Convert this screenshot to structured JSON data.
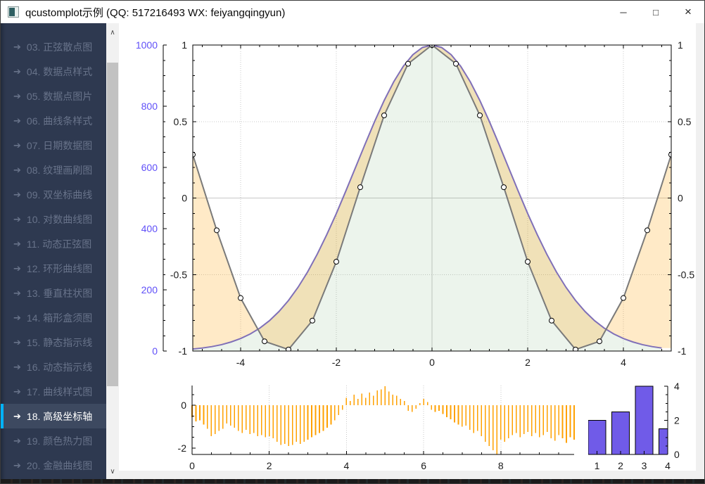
{
  "window": {
    "title": "qcustomplot示例 (QQ: 517216493 WX: feiyangqingyun)",
    "controls": {
      "minimize": "─",
      "maximize": "□",
      "close": "×"
    }
  },
  "sidebar": {
    "arrow_glyph": "➔",
    "items": [
      {
        "label": "03. 正弦散点图",
        "selected": false
      },
      {
        "label": "04. 数据点样式",
        "selected": false
      },
      {
        "label": "05. 数据点图片",
        "selected": false
      },
      {
        "label": "06. 曲线条样式",
        "selected": false
      },
      {
        "label": "07. 日期数据图",
        "selected": false
      },
      {
        "label": "08. 纹理画刷图",
        "selected": false
      },
      {
        "label": "09. 双坐标曲线",
        "selected": false
      },
      {
        "label": "10. 对数曲线图",
        "selected": false
      },
      {
        "label": "11. 动态正弦图",
        "selected": false
      },
      {
        "label": "12. 环形曲线图",
        "selected": false
      },
      {
        "label": "13. 垂直柱状图",
        "selected": false
      },
      {
        "label": "14. 箱形盒须图",
        "selected": false
      },
      {
        "label": "15. 静态指示线",
        "selected": false
      },
      {
        "label": "16. 动态指示线",
        "selected": false
      },
      {
        "label": "17. 曲线样式图",
        "selected": false
      },
      {
        "label": "18. 高级坐标轴",
        "selected": true
      },
      {
        "label": "19. 颜色热力图",
        "selected": false
      },
      {
        "label": "20. 金融曲线图",
        "selected": false
      }
    ]
  },
  "colors": {
    "sidebar_bg": "#2e3950",
    "sidebar_selected_bg": "#3d4960",
    "sidebar_accent": "#00b3ff",
    "blue_axis_labels": "#6050F8",
    "gauss_line": "#8070B8",
    "gauss_fill": "rgba(110,170,110,0.13)",
    "cos_line": "#7a7a7a",
    "channel_fill": "rgba(255,161,0,0.22)",
    "impulse": "#FFA100",
    "bar_fill": "#705BE8",
    "axis": "#000000",
    "grid": "#c8c8c8"
  },
  "chart_data": [
    {
      "type": "line",
      "name": "main-advanced-axes-plot",
      "x_range": [
        -5,
        5
      ],
      "axes": {
        "bottom": {
          "ticks": [
            -4,
            -2,
            0,
            2,
            4
          ],
          "subtick_step": 0.4
        },
        "left_inner": {
          "range": [
            -1,
            1
          ],
          "ticks": [
            -1,
            -0.5,
            0,
            0.5,
            1
          ],
          "subtick_step": 0.1
        },
        "left_outer": {
          "range": [
            0,
            1000
          ],
          "ticks": [
            0,
            200,
            400,
            600,
            800,
            1000
          ],
          "subtick_step": 50,
          "label_color": "#6050F8"
        },
        "right": {
          "range": [
            -1,
            1
          ],
          "ticks": [
            -1,
            -0.5,
            0,
            0.5,
            1
          ],
          "subtick_step": 0.1
        }
      },
      "series": [
        {
          "name": "gauss-curve",
          "axis": "left_outer",
          "line_color": "#8070B8",
          "fill_color": "rgba(110,170,110,0.13)",
          "x_start": -5,
          "x_step": 0.2,
          "values": [
            6.7,
            9.9,
            14.5,
            20.8,
            29.6,
            40.9,
            55.8,
            74.8,
            99,
            129,
            165.3,
            208.4,
            258.6,
            316.2,
            380.3,
            449.3,
            523.4,
            599.5,
            675.7,
            749.8,
            818.7,
            879.9,
            930.5,
            968.5,
            992,
            1000,
            992,
            968.5,
            930.5,
            879.9,
            818.7,
            749.8,
            675.7,
            599.5,
            523.4,
            449.3,
            380.3,
            316.2,
            258.6,
            208.4,
            165.3,
            129,
            99,
            74.8,
            55.8,
            40.9,
            29.6,
            20.8,
            14.5,
            9.9
          ]
        },
        {
          "name": "cos-scatter",
          "axis": "left_inner",
          "line_color": "#7a7a7a",
          "marker": "circle",
          "channel_fill_color": "rgba(255,161,0,0.22)",
          "x_start": -5,
          "x_step": 0.5,
          "values": [
            0.2837,
            -0.2108,
            -0.6536,
            -0.9365,
            -0.99,
            -0.8011,
            -0.4161,
            0.0707,
            0.5403,
            0.8776,
            1,
            0.8776,
            0.5403,
            0.0707,
            -0.4161,
            -0.8011,
            -0.99,
            -0.9365,
            -0.6536,
            -0.2108,
            0.2837
          ]
        }
      ]
    },
    {
      "type": "impulse",
      "name": "random-walk-impulse-plot",
      "color": "#FFA100",
      "x_start": 0,
      "x_step": 0.1,
      "y_range": [
        -2.3,
        0.93
      ],
      "axes": {
        "bottom": {
          "ticks": [
            0,
            2,
            4,
            6,
            8
          ],
          "subtick_step": 0.5,
          "grid_ticks": [
            2,
            4,
            6,
            8
          ]
        },
        "left": {
          "ticks": [
            0,
            -2
          ],
          "subtick_step": 0.5
        }
      },
      "values": [
        -0.55,
        -0.75,
        -0.7,
        -0.9,
        -1.1,
        -1.45,
        -1.35,
        -1.2,
        -1.1,
        -0.85,
        -0.95,
        -1.05,
        -1.2,
        -1.3,
        -1.15,
        -1.35,
        -1.3,
        -1.45,
        -1.4,
        -1.5,
        -1.45,
        -1.55,
        -1.7,
        -1.85,
        -1.8,
        -1.9,
        -1.85,
        -1.7,
        -1.8,
        -1.7,
        -1.6,
        -1.5,
        -1.4,
        -1.3,
        -1.2,
        -1.05,
        -0.9,
        -0.7,
        -0.45,
        -0.2,
        0.35,
        0.2,
        0.5,
        0.3,
        0.55,
        0.35,
        0.6,
        0.45,
        0.7,
        0.75,
        0.9,
        0.65,
        0.5,
        0.45,
        0.3,
        0.2,
        -0.25,
        -0.3,
        -0.15,
        0.1,
        0.3,
        0.15,
        -0.2,
        -0.3,
        -0.25,
        -0.4,
        -0.55,
        -0.65,
        -0.8,
        -0.9,
        -1.0,
        -0.95,
        -1.15,
        -1.3,
        -1.2,
        -1.45,
        -1.7,
        -1.9,
        -2.1,
        -2.3,
        -1.6,
        -1.7,
        -1.55,
        -1.4,
        -1.3,
        -1.5,
        -1.35,
        -1.25,
        -1.45,
        -1.3,
        -1.5,
        -1.4,
        -1.25,
        -1.55,
        -1.65,
        -1.4,
        -1.55,
        -1.75,
        -1.5,
        -1.6
      ]
    },
    {
      "type": "bar",
      "name": "bars-plot",
      "categories": [
        1,
        2,
        3,
        4
      ],
      "values": [
        2,
        2.5,
        4,
        1.5
      ],
      "bar_color": "#705BE8",
      "bar_border": "#000000",
      "bar_width": 0.75,
      "axes": {
        "bottom": {
          "ticks": [
            1,
            2,
            3,
            4
          ],
          "range": [
            0.625,
            4.0
          ]
        },
        "right": {
          "ticks": [
            0,
            2,
            4
          ],
          "subtick_step": 0.5,
          "range": [
            0,
            4
          ]
        }
      }
    }
  ]
}
